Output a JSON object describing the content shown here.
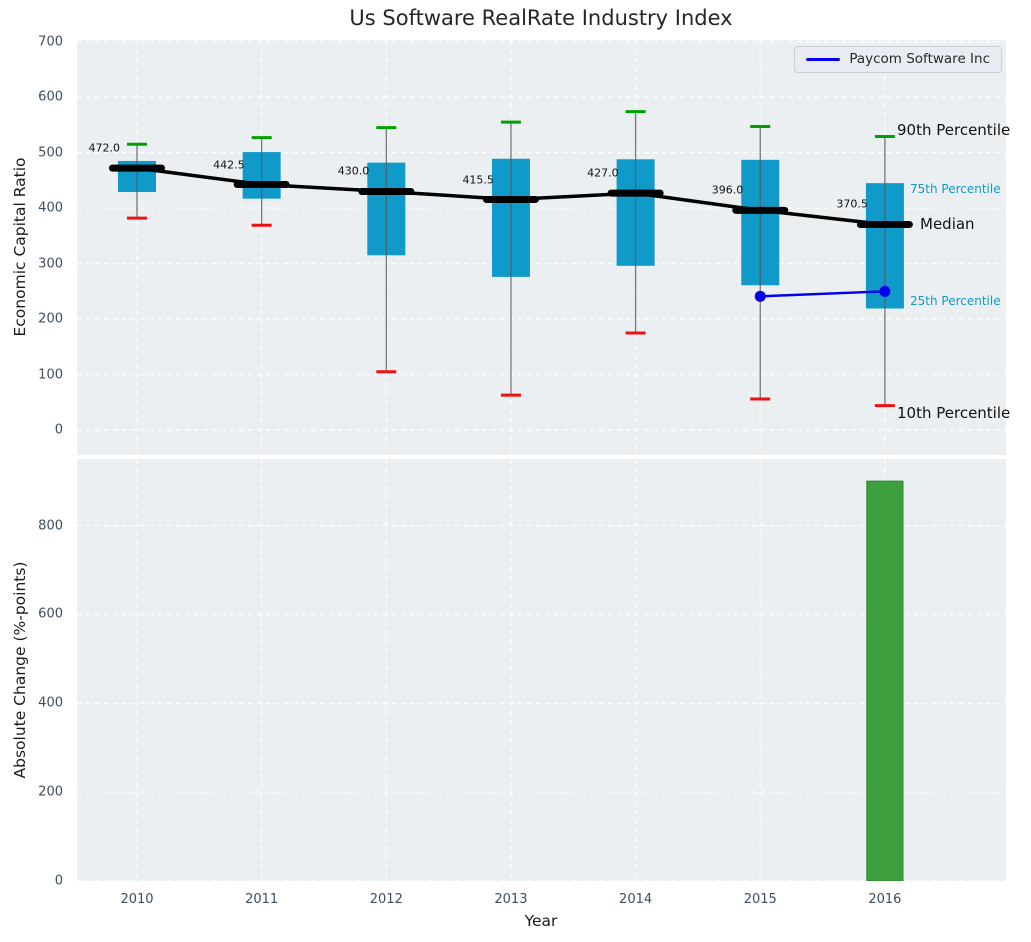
{
  "title": "Us Software RealRate Industry Index",
  "legend": {
    "label": "Paycom Software Inc"
  },
  "colors": {
    "plot_bg": "#eceff2",
    "grid": "#ffffff",
    "tick_label": "#3d4e63",
    "axis_label": "#1a1a1a",
    "box_fill": "#0f9aca",
    "cap_90th": "#00a000",
    "cap_10th": "#ee1111",
    "whisker": "#595959",
    "median": "#000000",
    "overlay_line": "#0000ee",
    "bar_fill": "#3da03d",
    "bar_edge": "#2e8b2e",
    "annotation_cyan": "#0f9aca"
  },
  "chart_data": [
    {
      "type": "boxplot-percentile-timeseries",
      "title": "Us Software RealRate Industry Index",
      "ylabel": "Economic Capital Ratio",
      "categories": [
        "2010",
        "2011",
        "2012",
        "2013",
        "2014",
        "2015",
        "2016"
      ],
      "yticks": [
        "0",
        "100",
        "200",
        "300",
        "400",
        "500",
        "600",
        "700"
      ],
      "ylim": [
        -45,
        703
      ],
      "grid": true,
      "series": {
        "p90": [
          515,
          527,
          545,
          555,
          574,
          547,
          529
        ],
        "p75": [
          485,
          501,
          482,
          489,
          488,
          487,
          445
        ],
        "median": [
          472.0,
          442.5,
          430.0,
          415.5,
          427.0,
          396.0,
          370.5
        ],
        "p25": [
          429,
          417,
          315,
          276,
          296,
          261,
          219
        ],
        "p10": [
          382,
          369,
          105,
          63,
          175,
          56,
          44
        ]
      },
      "median_labels": [
        "472.0",
        "442.5",
        "430.0",
        "415.5",
        "427.0",
        "396.0",
        "370.5"
      ],
      "overlay_line": {
        "name": "Paycom Software Inc",
        "categories": [
          "2015",
          "2016"
        ],
        "values": [
          241,
          250
        ]
      },
      "annotations": {
        "p90": "90th Percentile",
        "p75": "75th Percentile",
        "median": "Median",
        "p25": "25th Percentile",
        "p10": "10th Percentile"
      },
      "legend_position": "upper right"
    },
    {
      "type": "bar",
      "ylabel": "Absolute Change (%-points)",
      "xlabel": "Year",
      "categories": [
        "2010",
        "2011",
        "2012",
        "2013",
        "2014",
        "2015",
        "2016"
      ],
      "values": [
        null,
        null,
        null,
        null,
        null,
        null,
        900
      ],
      "yticks": [
        "0",
        "200",
        "400",
        "600",
        "800"
      ],
      "ylim": [
        0,
        950
      ],
      "grid": true
    }
  ]
}
